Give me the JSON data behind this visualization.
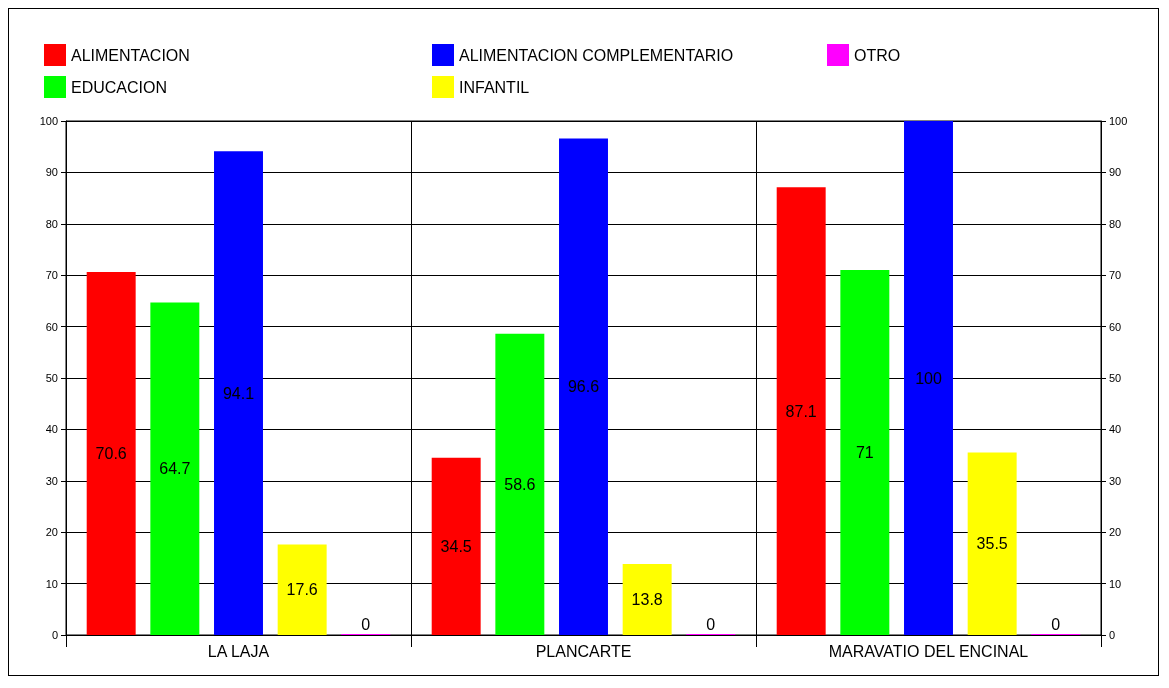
{
  "chart_data": {
    "type": "bar",
    "categories": [
      "LA LAJA",
      "PLANCARTE",
      "MARAVATIO DEL ENCINAL"
    ],
    "series": [
      {
        "name": "ALIMENTACION",
        "color": "#ff0000",
        "values": [
          70.6,
          34.5,
          87.1
        ]
      },
      {
        "name": "EDUCACION",
        "color": "#00ff00",
        "values": [
          64.7,
          58.6,
          71
        ]
      },
      {
        "name": "ALIMENTACION COMPLEMENTARIO",
        "color": "#0000ff",
        "values": [
          94.1,
          96.6,
          100
        ]
      },
      {
        "name": "INFANTIL",
        "color": "#ffff00",
        "values": [
          17.6,
          13.8,
          35.5
        ]
      },
      {
        "name": "OTRO",
        "color": "#ff00ff",
        "values": [
          0,
          0,
          0
        ]
      }
    ],
    "ylim": [
      0,
      100
    ],
    "yticks": [
      0,
      10,
      20,
      30,
      40,
      50,
      60,
      70,
      80,
      90,
      100
    ],
    "y2lim": [
      0,
      100
    ],
    "y2ticks": [
      0,
      10,
      20,
      30,
      40,
      50,
      60,
      70,
      80,
      90,
      100
    ],
    "grid": true,
    "legend": "top left",
    "data_labels": true
  }
}
